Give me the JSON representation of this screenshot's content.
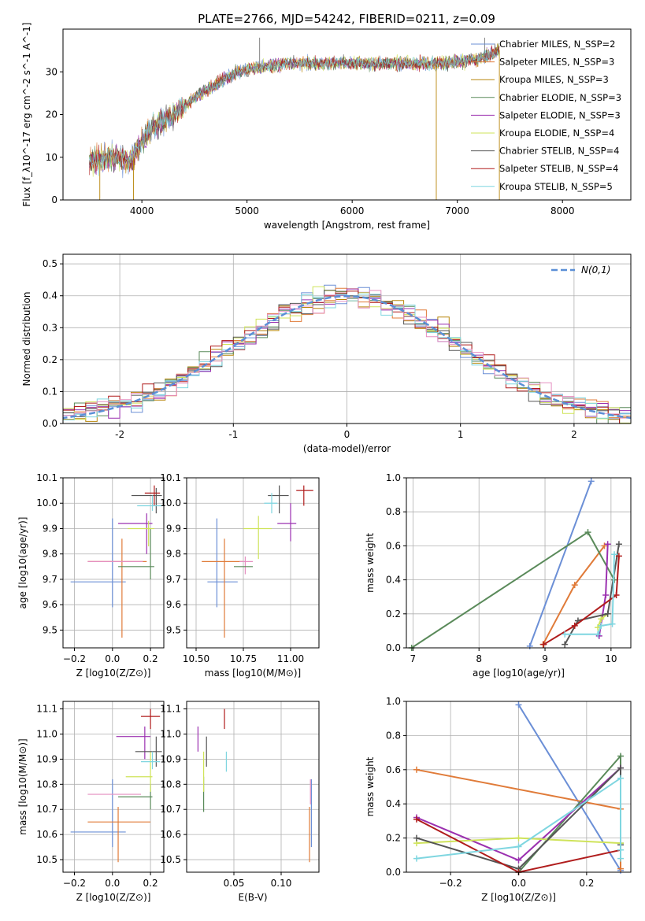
{
  "title": "PLATE=2766, MJD=54242, FIBERID=0211, z=0.09",
  "colors": {
    "Chabrier MILES": "#6b8fd6",
    "Salpeter MILES": "#e07b39",
    "Kroupa MILES": "#b8860b",
    "Chabrier ELODIE": "#5a8a5a",
    "Salpeter ELODIE": "#9b30b0",
    "Kroupa ELODIE": "#cfe35a",
    "Chabrier STELIB": "#555555",
    "Salpeter STELIB": "#b01c1c",
    "Kroupa STELIB": "#7fd6e0",
    "pink": "#e58fc0"
  },
  "chart_data": [
    {
      "type": "line",
      "xlabel": "wavelength [Angstrom, rest frame]",
      "ylabel": "Flux [f_λ10^-17 erg cm^-2 s^-1 A^-1]",
      "xlim": [
        3250,
        8650
      ],
      "ylim": [
        0,
        40
      ],
      "xticks": [
        4000,
        5000,
        6000,
        7000,
        8000
      ],
      "yticks": [
        0,
        10,
        20,
        30
      ],
      "legend": "top-right",
      "series": [
        {
          "name": "Chabrier MILES, N_SSP=2"
        },
        {
          "name": "Salpeter MILES, N_SSP=3"
        },
        {
          "name": "Kroupa MILES, N_SSP=3"
        },
        {
          "name": "Chabrier ELODIE, N_SSP=3"
        },
        {
          "name": "Salpeter ELODIE, N_SSP=3"
        },
        {
          "name": "Kroupa ELODIE, N_SSP=4"
        },
        {
          "name": "Chabrier STELIB, N_SSP=4"
        },
        {
          "name": "Salpeter STELIB, N_SSP=4"
        },
        {
          "name": "Kroupa STELIB, N_SSP=5"
        }
      ],
      "continuum": [
        [
          3500,
          9
        ],
        [
          3700,
          10
        ],
        [
          3900,
          9
        ],
        [
          4000,
          14
        ],
        [
          4100,
          17
        ],
        [
          4300,
          20
        ],
        [
          4500,
          24
        ],
        [
          4700,
          27
        ],
        [
          4900,
          30
        ],
        [
          5100,
          31
        ],
        [
          5400,
          32
        ],
        [
          5700,
          32
        ],
        [
          6000,
          32
        ],
        [
          6300,
          32
        ],
        [
          6600,
          32
        ],
        [
          6900,
          32
        ],
        [
          7200,
          33
        ],
        [
          7400,
          35
        ]
      ],
      "x_range": [
        3500,
        7400
      ],
      "spikes": [
        [
          3920,
          0
        ],
        [
          3600,
          0
        ],
        [
          5120,
          38
        ],
        [
          6800,
          0
        ],
        [
          7260,
          38
        ],
        [
          7400,
          0
        ]
      ]
    },
    {
      "type": "histogram",
      "xlabel": "(data-model)/error",
      "ylabel": "Normed distribution",
      "xlim": [
        -2.5,
        2.5
      ],
      "ylim": [
        0,
        0.53
      ],
      "xticks": [
        -2,
        -1,
        0,
        1,
        2
      ],
      "yticks": [
        0.0,
        0.1,
        0.2,
        0.3,
        0.4,
        0.5
      ],
      "legend_label": "N(0,1)",
      "legend": "top-right",
      "bin_width": 0.1
    },
    {
      "type": "scatter",
      "xlabel": "Z [log10(Z/Z⊙)]",
      "ylabel": "age  [log10(age/yr)]",
      "xlim": [
        -0.26,
        0.27
      ],
      "ylim": [
        9.43,
        10.1
      ],
      "xticks": [
        "−0.2",
        "0.0",
        "0.2"
      ],
      "xtick_values": [
        -0.2,
        0.0,
        0.2
      ],
      "yticks": [
        9.5,
        9.6,
        9.7,
        9.8,
        9.9,
        10.0,
        10.1
      ],
      "points": [
        {
          "c": "Chabrier MILES",
          "x": 0.0,
          "y": 9.69,
          "xl": -0.22,
          "xh": 0.07,
          "yl": 9.59,
          "yh": 9.94
        },
        {
          "c": "Salpeter MILES",
          "x": 0.05,
          "y": 9.77,
          "xl": -0.13,
          "xh": 0.18,
          "yl": 9.47,
          "yh": 9.86
        },
        {
          "c": "pink",
          "x": -0.05,
          "y": 9.77,
          "xl": -0.13,
          "xh": 0.16,
          "yl": 9.77,
          "yh": 9.77
        },
        {
          "c": "Chabrier ELODIE",
          "x": 0.2,
          "y": 9.75,
          "xl": 0.03,
          "xh": 0.22,
          "yl": 9.7,
          "yh": 9.9
        },
        {
          "c": "Salpeter ELODIE",
          "x": 0.18,
          "y": 9.92,
          "xl": 0.03,
          "xh": 0.21,
          "yl": 9.8,
          "yh": 9.96
        },
        {
          "c": "Kroupa ELODIE",
          "x": 0.19,
          "y": 9.9,
          "xl": 0.08,
          "xh": 0.22,
          "yl": 9.83,
          "yh": 9.93
        },
        {
          "c": "Chabrier STELIB",
          "x": 0.23,
          "y": 10.03,
          "xl": 0.1,
          "xh": 0.26,
          "yl": 9.96,
          "yh": 10.06
        },
        {
          "c": "Salpeter STELIB",
          "x": 0.22,
          "y": 10.04,
          "xl": 0.17,
          "xh": 0.25,
          "yl": 9.99,
          "yh": 10.07
        },
        {
          "c": "Kroupa STELIB",
          "x": 0.21,
          "y": 9.99,
          "xl": 0.13,
          "xh": 0.26,
          "yl": 9.97,
          "yh": 10.03
        }
      ]
    },
    {
      "type": "scatter",
      "xlabel": "mass [log10(M/M⊙)]",
      "ylabel": "",
      "xlim": [
        10.45,
        11.15
      ],
      "ylim": [
        9.43,
        10.1
      ],
      "xticks": [
        "10.50",
        "10.75",
        "11.00"
      ],
      "xtick_values": [
        10.5,
        10.75,
        11.0
      ],
      "yticks": [
        9.5,
        9.6,
        9.7,
        9.8,
        9.9,
        10.0,
        10.1
      ],
      "points": [
        {
          "c": "Chabrier MILES",
          "x": 10.61,
          "y": 9.69,
          "xl": 10.56,
          "xh": 10.72,
          "yl": 9.59,
          "yh": 9.94
        },
        {
          "c": "Salpeter MILES",
          "x": 10.65,
          "y": 9.77,
          "xl": 10.53,
          "xh": 10.75,
          "yl": 9.47,
          "yh": 9.86
        },
        {
          "c": "pink",
          "x": 10.76,
          "y": 9.77,
          "xl": 10.73,
          "xh": 10.8,
          "yl": 9.72,
          "yh": 9.79
        },
        {
          "c": "Chabrier ELODIE",
          "x": 10.75,
          "y": 9.75,
          "xl": 10.7,
          "xh": 10.8,
          "yl": 9.75,
          "yh": 9.75
        },
        {
          "c": "Salpeter ELODIE",
          "x": 11.0,
          "y": 9.92,
          "xl": 10.93,
          "xh": 11.03,
          "yl": 9.85,
          "yh": 10.0
        },
        {
          "c": "Kroupa ELODIE",
          "x": 10.83,
          "y": 9.9,
          "xl": 10.75,
          "xh": 10.9,
          "yl": 9.78,
          "yh": 9.95
        },
        {
          "c": "Chabrier STELIB",
          "x": 10.94,
          "y": 10.03,
          "xl": 10.88,
          "xh": 10.99,
          "yl": 9.96,
          "yh": 10.07
        },
        {
          "c": "Salpeter STELIB",
          "x": 11.07,
          "y": 10.05,
          "xl": 11.03,
          "xh": 11.12,
          "yl": 9.99,
          "yh": 10.07
        },
        {
          "c": "Kroupa STELIB",
          "x": 10.9,
          "y": 10.0,
          "xl": 10.86,
          "xh": 10.93,
          "yl": 9.96,
          "yh": 10.04
        }
      ]
    },
    {
      "type": "line",
      "xlabel": "age  [log10(age/yr)]",
      "ylabel": "mass weight",
      "xlim": [
        6.9,
        10.3
      ],
      "ylim": [
        0,
        1
      ],
      "xticks": [
        7,
        8,
        9,
        10
      ],
      "yticks": [
        0.0,
        0.2,
        0.4,
        0.6,
        0.8,
        1.0
      ],
      "series": [
        {
          "c": "Chabrier MILES",
          "x": [
            8.77,
            9.7
          ],
          "y": [
            0.01,
            0.98
          ]
        },
        {
          "c": "Salpeter MILES",
          "x": [
            8.97,
            9.45,
            9.9
          ],
          "y": [
            0.02,
            0.37,
            0.6
          ]
        },
        {
          "c": "Chabrier ELODIE",
          "x": [
            6.98,
            9.65,
            10.05
          ],
          "y": [
            0.0,
            0.68,
            0.4
          ]
        },
        {
          "c": "Salpeter ELODIE",
          "x": [
            9.82,
            9.92,
            9.95
          ],
          "y": [
            0.07,
            0.31,
            0.61
          ]
        },
        {
          "c": "Kroupa ELODIE",
          "x": [
            9.8,
            9.85,
            9.95
          ],
          "y": [
            0.12,
            0.17,
            0.2
          ]
        },
        {
          "c": "Chabrier STELIB",
          "x": [
            9.3,
            9.5,
            9.95,
            10.12
          ],
          "y": [
            0.02,
            0.16,
            0.2,
            0.61
          ]
        },
        {
          "c": "Salpeter STELIB",
          "x": [
            8.98,
            9.45,
            10.08,
            10.12
          ],
          "y": [
            0.02,
            0.13,
            0.31,
            0.54
          ]
        },
        {
          "c": "Kroupa STELIB",
          "x": [
            9.3,
            9.8,
            9.85,
            10.02,
            10.05
          ],
          "y": [
            0.08,
            0.08,
            0.13,
            0.14,
            0.55
          ]
        }
      ]
    },
    {
      "type": "scatter",
      "xlabel": "Z [log10(Z/Z⊙)]",
      "ylabel": "mass [log10(M/M⊙)]",
      "xlim": [
        -0.26,
        0.27
      ],
      "ylim": [
        10.45,
        11.13
      ],
      "xticks": [
        "−0.2",
        "0.0",
        "0.2"
      ],
      "xtick_values": [
        -0.2,
        0.0,
        0.2
      ],
      "yticks": [
        10.5,
        10.6,
        10.7,
        10.8,
        10.9,
        11.0,
        11.1
      ],
      "points": [
        {
          "c": "Chabrier MILES",
          "x": 0.0,
          "y": 10.61,
          "xl": -0.22,
          "xh": 0.07,
          "yl": 10.55,
          "yh": 10.82
        },
        {
          "c": "Salpeter MILES",
          "x": 0.03,
          "y": 10.65,
          "xl": -0.13,
          "xh": 0.2,
          "yl": 10.49,
          "yh": 10.71
        },
        {
          "c": "pink",
          "x": -0.02,
          "y": 10.76,
          "xl": -0.13,
          "xh": 0.15,
          "yl": 10.76,
          "yh": 10.76
        },
        {
          "c": "Chabrier ELODIE",
          "x": 0.2,
          "y": 10.75,
          "xl": 0.03,
          "xh": 0.21,
          "yl": 10.7,
          "yh": 10.8
        },
        {
          "c": "Salpeter ELODIE",
          "x": 0.17,
          "y": 10.99,
          "xl": 0.02,
          "xh": 0.2,
          "yl": 10.9,
          "yh": 11.03
        },
        {
          "c": "Kroupa ELODIE",
          "x": 0.2,
          "y": 10.83,
          "xl": 0.07,
          "xh": 0.21,
          "yl": 10.77,
          "yh": 10.93
        },
        {
          "c": "Chabrier STELIB",
          "x": 0.23,
          "y": 10.93,
          "xl": 0.12,
          "xh": 0.26,
          "yl": 10.87,
          "yh": 10.99
        },
        {
          "c": "Salpeter STELIB",
          "x": 0.2,
          "y": 11.07,
          "xl": 0.15,
          "xh": 0.25,
          "yl": 11.02,
          "yh": 11.1
        },
        {
          "c": "Kroupa STELIB",
          "x": 0.21,
          "y": 10.89,
          "xl": 0.15,
          "xh": 0.25,
          "yl": 10.86,
          "yh": 10.93
        }
      ]
    },
    {
      "type": "scatter",
      "xlabel": "E(B-V)",
      "ylabel": "",
      "xlim": [
        0.0,
        0.14
      ],
      "ylim": [
        10.45,
        11.13
      ],
      "xticks": [
        "0.05",
        "0.10"
      ],
      "xtick_values": [
        0.05,
        0.1
      ],
      "yticks": [
        10.5,
        10.6,
        10.7,
        10.8,
        10.9,
        11.0,
        11.1
      ],
      "points": [
        {
          "c": "Chabrier MILES",
          "x": 0.132,
          "y": 10.61,
          "yl": 10.55,
          "yh": 10.82
        },
        {
          "c": "Salpeter MILES",
          "x": 0.13,
          "y": 10.65,
          "yl": 10.49,
          "yh": 10.71
        },
        {
          "c": "pink",
          "x": 0.131,
          "y": 10.76,
          "yl": 10.72,
          "yh": 10.82
        },
        {
          "c": "Chabrier ELODIE",
          "x": 0.018,
          "y": 10.75,
          "yl": 10.69,
          "yh": 10.83
        },
        {
          "c": "Salpeter ELODIE",
          "x": 0.012,
          "y": 10.99,
          "yl": 10.93,
          "yh": 11.03
        },
        {
          "c": "Kroupa ELODIE",
          "x": 0.018,
          "y": 10.83,
          "yl": 10.77,
          "yh": 10.93
        },
        {
          "c": "Chabrier STELIB",
          "x": 0.021,
          "y": 10.93,
          "yl": 10.87,
          "yh": 10.99
        },
        {
          "c": "Salpeter STELIB",
          "x": 0.04,
          "y": 11.07,
          "yl": 11.02,
          "yh": 11.1
        },
        {
          "c": "Kroupa STELIB",
          "x": 0.042,
          "y": 10.89,
          "yl": 10.85,
          "yh": 10.93
        }
      ]
    },
    {
      "type": "line",
      "xlabel": "Z [log10(Z/Z⊙)]",
      "ylabel": "mass weight",
      "xlim": [
        -0.33,
        0.33
      ],
      "ylim": [
        0,
        1
      ],
      "xticks": [
        "−0.2",
        "0.0",
        "0.2"
      ],
      "xtick_values": [
        -0.2,
        0.0,
        0.2
      ],
      "yticks": [
        0.0,
        0.2,
        0.4,
        0.6,
        0.8,
        1.0
      ],
      "series": [
        {
          "c": "Chabrier MILES",
          "x": [
            0.0,
            0.3
          ],
          "y": [
            0.98,
            0.01
          ]
        },
        {
          "c": "Salpeter MILES",
          "x": [
            -0.3,
            0.3,
            0.3
          ],
          "y": [
            0.6,
            0.37,
            0.02
          ]
        },
        {
          "c": "Chabrier ELODIE",
          "x": [
            0.0,
            0.3,
            0.3
          ],
          "y": [
            0.0,
            0.68,
            0.17
          ]
        },
        {
          "c": "Salpeter ELODIE",
          "x": [
            -0.3,
            0.0,
            0.3,
            0.3
          ],
          "y": [
            0.32,
            0.07,
            0.61,
            0.16
          ]
        },
        {
          "c": "Kroupa ELODIE",
          "x": [
            -0.3,
            0.0,
            0.3
          ],
          "y": [
            0.17,
            0.2,
            0.17
          ]
        },
        {
          "c": "Chabrier STELIB",
          "x": [
            -0.3,
            0.0,
            0.3,
            0.3
          ],
          "y": [
            0.2,
            0.02,
            0.61,
            0.16
          ]
        },
        {
          "c": "Salpeter STELIB",
          "x": [
            -0.3,
            0.0,
            0.3
          ],
          "y": [
            0.31,
            0.0,
            0.13
          ]
        },
        {
          "c": "Kroupa STELIB",
          "x": [
            -0.3,
            0.0,
            0.3,
            0.3,
            0.3
          ],
          "y": [
            0.08,
            0.15,
            0.55,
            0.13,
            0.08
          ]
        }
      ]
    }
  ]
}
